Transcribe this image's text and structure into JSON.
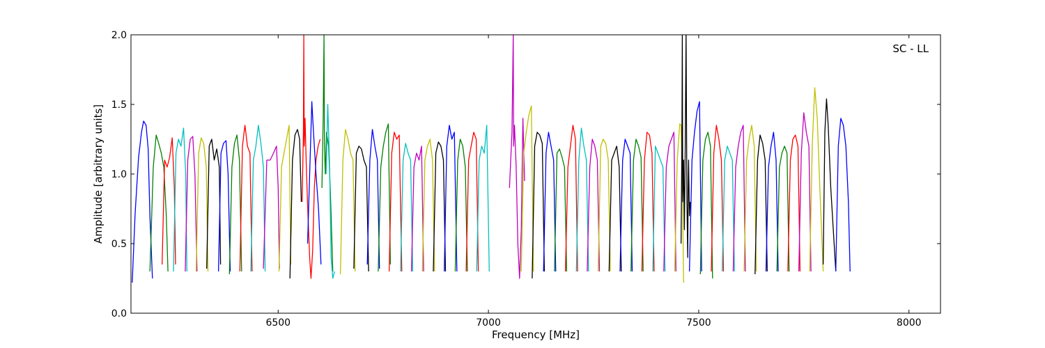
{
  "chart_data": {
    "type": "line",
    "annotation": "SC - LL",
    "xlabel": "Frequency [MHz]",
    "ylabel": "Amplitude [arbitrary units]",
    "xlim": [
      6150,
      8075
    ],
    "ylim": [
      0.0,
      2.0
    ],
    "xticks": [
      6500,
      7000,
      7500,
      8000
    ],
    "yticks": [
      0.0,
      0.5,
      1.0,
      1.5,
      2.0
    ],
    "xtick_labels": [
      "6500",
      "7000",
      "7500",
      "8000"
    ],
    "ytick_labels": [
      "0.0",
      "0.5",
      "1.0",
      "1.5",
      "2.0"
    ],
    "grid": false,
    "legend": "none",
    "color_cycle": [
      "#0000ff",
      "#008000",
      "#ff0000",
      "#00bfbf",
      "#bf00bf",
      "#bfbf00",
      "#000000"
    ],
    "series": [
      {
        "color": "#0000ff",
        "x": [
          6153,
          6160,
          6168,
          6175,
          6180,
          6186,
          6191,
          6195,
          6201
        ],
        "y": [
          0.22,
          0.72,
          1.12,
          1.3,
          1.38,
          1.35,
          1.18,
          0.7,
          0.25
        ]
      },
      {
        "color": "#008000",
        "x": [
          6195,
          6203,
          6210,
          6216,
          6222,
          6228,
          6234,
          6238
        ],
        "y": [
          0.3,
          1.05,
          1.28,
          1.22,
          1.15,
          1.05,
          0.7,
          0.3
        ]
      },
      {
        "color": "#ff0000",
        "x": [
          6224,
          6230,
          6236,
          6242,
          6248,
          6253,
          6256
        ],
        "y": [
          0.35,
          1.1,
          1.05,
          1.12,
          1.26,
          0.9,
          0.35
        ]
      },
      {
        "color": "#00bfbf",
        "x": [
          6251,
          6257,
          6263,
          6269,
          6275,
          6280,
          6283
        ],
        "y": [
          0.3,
          1.15,
          1.25,
          1.2,
          1.33,
          1.0,
          0.3
        ]
      },
      {
        "color": "#bf00bf",
        "x": [
          6279,
          6285,
          6291,
          6297,
          6302,
          6307
        ],
        "y": [
          0.3,
          1.1,
          1.25,
          1.27,
          1.0,
          0.3
        ]
      },
      {
        "color": "#bfbf00",
        "x": [
          6305,
          6311,
          6317,
          6323,
          6329,
          6333
        ],
        "y": [
          0.3,
          1.15,
          1.26,
          1.22,
          1.05,
          0.3
        ]
      },
      {
        "color": "#000000",
        "x": [
          6330,
          6336,
          6342,
          6348,
          6354,
          6360,
          6363
        ],
        "y": [
          0.32,
          1.2,
          1.25,
          1.1,
          1.18,
          1.05,
          0.35
        ]
      },
      {
        "color": "#0000ff",
        "x": [
          6358,
          6364,
          6370,
          6376,
          6381,
          6386
        ],
        "y": [
          0.3,
          1.15,
          1.22,
          1.24,
          1.0,
          0.3
        ]
      },
      {
        "color": "#008000",
        "x": [
          6384,
          6390,
          6396,
          6402,
          6408,
          6413
        ],
        "y": [
          0.28,
          1.05,
          1.22,
          1.28,
          1.1,
          0.3
        ]
      },
      {
        "color": "#ff0000",
        "x": [
          6409,
          6415,
          6421,
          6427,
          6433,
          6438
        ],
        "y": [
          0.3,
          1.2,
          1.35,
          1.2,
          1.15,
          0.3
        ]
      },
      {
        "color": "#00bfbf",
        "x": [
          6435,
          6441,
          6447,
          6453,
          6459,
          6465,
          6469
        ],
        "y": [
          0.3,
          1.1,
          1.2,
          1.35,
          1.22,
          1.05,
          0.3
        ]
      },
      {
        "color": "#bf00bf",
        "x": [
          6465,
          6473,
          6481,
          6489,
          6496,
          6500,
          6503
        ],
        "y": [
          0.32,
          1.1,
          1.1,
          1.15,
          1.2,
          0.9,
          0.32
        ]
      },
      {
        "color": "#bfbf00",
        "x": [
          6502,
          6508,
          6514,
          6520,
          6526,
          6530
        ],
        "y": [
          0.3,
          1.05,
          1.15,
          1.25,
          1.35,
          0.35
        ]
      },
      {
        "color": "#000000",
        "x": [
          6528,
          6534,
          6540,
          6546,
          6551,
          6555
        ],
        "y": [
          0.25,
          1.1,
          1.28,
          1.32,
          1.25,
          0.8
        ]
      },
      {
        "color": "#ff0000",
        "x": [
          6557,
          6560,
          6561,
          6562,
          6564,
          6567,
          6571,
          6575,
          6578,
          6582,
          6586,
          6590,
          6595,
          6600
        ],
        "y": [
          0.8,
          1.3,
          2.0,
          1.2,
          1.4,
          1.05,
          0.7,
          0.4,
          0.25,
          0.45,
          0.9,
          1.1,
          1.2,
          1.25
        ]
      },
      {
        "color": "#0000ff",
        "x": [
          6570,
          6576,
          6580,
          6584,
          6590,
          6596,
          6602
        ],
        "y": [
          0.5,
          1.1,
          1.52,
          1.3,
          1.0,
          0.75,
          0.35
        ]
      },
      {
        "color": "#008000",
        "x": [
          6604,
          6607,
          6609,
          6610,
          6612,
          6615,
          6620,
          6625,
          6630
        ],
        "y": [
          0.9,
          1.4,
          2.0,
          1.2,
          1.0,
          1.3,
          1.2,
          0.8,
          0.3
        ]
      },
      {
        "color": "#00bfbf",
        "x": [
          6614,
          6618,
          6622,
          6626,
          6630,
          6634
        ],
        "y": [
          1.0,
          1.5,
          1.1,
          0.4,
          0.25,
          0.3
        ]
      },
      {
        "color": "#bfbf00",
        "x": [
          6648,
          6654,
          6660,
          6666,
          6672,
          6678,
          6683
        ],
        "y": [
          0.28,
          1.1,
          1.32,
          1.25,
          1.15,
          1.1,
          0.3
        ]
      },
      {
        "color": "#000000",
        "x": [
          6680,
          6686,
          6692,
          6698,
          6704,
          6710,
          6715
        ],
        "y": [
          0.32,
          1.15,
          1.2,
          1.18,
          1.1,
          1.05,
          0.3
        ]
      },
      {
        "color": "#0000ff",
        "x": [
          6712,
          6718,
          6724,
          6730,
          6736,
          6741
        ],
        "y": [
          0.35,
          1.1,
          1.32,
          1.2,
          1.1,
          0.32
        ]
      },
      {
        "color": "#008000",
        "x": [
          6738,
          6744,
          6750,
          6756,
          6762,
          6767
        ],
        "y": [
          0.3,
          1.05,
          1.2,
          1.3,
          1.36,
          0.35
        ]
      },
      {
        "color": "#ff0000",
        "x": [
          6764,
          6770,
          6776,
          6782,
          6788,
          6794
        ],
        "y": [
          0.3,
          1.15,
          1.3,
          1.25,
          1.28,
          0.3
        ]
      },
      {
        "color": "#00bfbf",
        "x": [
          6791,
          6797,
          6803,
          6809,
          6815,
          6820
        ],
        "y": [
          0.3,
          1.1,
          1.22,
          1.15,
          1.1,
          0.3
        ]
      },
      {
        "color": "#bf00bf",
        "x": [
          6817,
          6823,
          6829,
          6835,
          6841,
          6846
        ],
        "y": [
          0.3,
          1.05,
          1.15,
          1.1,
          1.2,
          0.3
        ]
      },
      {
        "color": "#bfbf00",
        "x": [
          6843,
          6849,
          6855,
          6861,
          6867,
          6872
        ],
        "y": [
          0.3,
          1.1,
          1.2,
          1.25,
          1.1,
          0.3
        ]
      },
      {
        "color": "#000000",
        "x": [
          6869,
          6875,
          6881,
          6887,
          6893,
          6898
        ],
        "y": [
          0.3,
          1.15,
          1.23,
          1.2,
          1.1,
          0.3
        ]
      },
      {
        "color": "#0000ff",
        "x": [
          6895,
          6901,
          6907,
          6913,
          6919,
          6925
        ],
        "y": [
          0.3,
          1.2,
          1.35,
          1.25,
          1.3,
          0.3
        ]
      },
      {
        "color": "#008000",
        "x": [
          6921,
          6927,
          6933,
          6939,
          6945,
          6950
        ],
        "y": [
          0.3,
          1.1,
          1.25,
          1.2,
          1.05,
          0.3
        ]
      },
      {
        "color": "#ff0000",
        "x": [
          6947,
          6953,
          6959,
          6965,
          6971,
          6976
        ],
        "y": [
          0.3,
          1.1,
          1.2,
          1.3,
          1.25,
          0.3
        ]
      },
      {
        "color": "#00bfbf",
        "x": [
          6972,
          6978,
          6984,
          6990,
          6996,
          7002
        ],
        "y": [
          0.3,
          1.1,
          1.2,
          1.15,
          1.35,
          0.3
        ]
      },
      {
        "color": "#bf00bf",
        "x": [
          7050,
          7056,
          7059,
          7060,
          7062,
          7066,
          7070,
          7074,
          7078,
          7082,
          7086
        ],
        "y": [
          0.9,
          1.3,
          2.0,
          1.2,
          1.35,
          1.05,
          0.5,
          0.25,
          0.6,
          1.4,
          0.95
        ]
      },
      {
        "color": "#bfbf00",
        "x": [
          7078,
          7084,
          7090,
          7096,
          7102,
          7107
        ],
        "y": [
          0.3,
          1.15,
          1.3,
          1.42,
          1.49,
          0.3
        ]
      },
      {
        "color": "#000000",
        "x": [
          7104,
          7110,
          7116,
          7122,
          7128,
          7133
        ],
        "y": [
          0.25,
          1.2,
          1.3,
          1.28,
          1.22,
          0.3
        ]
      },
      {
        "color": "#0000ff",
        "x": [
          7131,
          7137,
          7143,
          7149,
          7155,
          7160
        ],
        "y": [
          0.3,
          1.15,
          1.3,
          1.2,
          1.1,
          0.3
        ]
      },
      {
        "color": "#008000",
        "x": [
          7157,
          7163,
          7169,
          7175,
          7181,
          7186
        ],
        "y": [
          0.3,
          1.15,
          1.18,
          1.12,
          1.05,
          0.3
        ]
      },
      {
        "color": "#ff0000",
        "x": [
          7183,
          7189,
          7195,
          7201,
          7207,
          7212
        ],
        "y": [
          0.3,
          1.05,
          1.2,
          1.35,
          1.25,
          0.3
        ]
      },
      {
        "color": "#00bfbf",
        "x": [
          7209,
          7215,
          7221,
          7227,
          7233,
          7238
        ],
        "y": [
          0.3,
          1.1,
          1.33,
          1.2,
          1.1,
          0.3
        ]
      },
      {
        "color": "#bf00bf",
        "x": [
          7235,
          7241,
          7247,
          7253,
          7259,
          7264
        ],
        "y": [
          0.3,
          1.05,
          1.25,
          1.2,
          1.1,
          0.3
        ]
      },
      {
        "color": "#bfbf00",
        "x": [
          7261,
          7267,
          7273,
          7279,
          7285,
          7290
        ],
        "y": [
          0.3,
          1.2,
          1.25,
          1.22,
          1.1,
          0.3
        ]
      },
      {
        "color": "#000000",
        "x": [
          7287,
          7293,
          7299,
          7305,
          7311,
          7316
        ],
        "y": [
          0.3,
          1.1,
          1.15,
          1.2,
          1.05,
          0.3
        ]
      },
      {
        "color": "#0000ff",
        "x": [
          7313,
          7319,
          7325,
          7331,
          7337,
          7342
        ],
        "y": [
          0.3,
          1.1,
          1.25,
          1.2,
          1.15,
          0.3
        ]
      },
      {
        "color": "#008000",
        "x": [
          7339,
          7345,
          7351,
          7357,
          7363,
          7368
        ],
        "y": [
          0.3,
          1.1,
          1.25,
          1.2,
          1.12,
          0.3
        ]
      },
      {
        "color": "#ff0000",
        "x": [
          7365,
          7371,
          7377,
          7383,
          7389,
          7394
        ],
        "y": [
          0.3,
          1.1,
          1.3,
          1.28,
          1.15,
          0.3
        ]
      },
      {
        "color": "#00bfbf",
        "x": [
          7391,
          7397,
          7403,
          7409,
          7415,
          7420
        ],
        "y": [
          0.3,
          1.2,
          1.15,
          1.1,
          1.05,
          0.3
        ]
      },
      {
        "color": "#bf00bf",
        "x": [
          7417,
          7423,
          7429,
          7435,
          7441,
          7446
        ],
        "y": [
          0.3,
          1.05,
          1.2,
          1.25,
          1.3,
          0.3
        ]
      },
      {
        "color": "#bfbf00",
        "x": [
          7443,
          7449,
          7455,
          7458,
          7461,
          7464
        ],
        "y": [
          0.3,
          1.1,
          1.36,
          1.35,
          1.0,
          0.22
        ]
      },
      {
        "color": "#000000",
        "x": [
          7458,
          7460,
          7461,
          7462,
          7464,
          7466,
          7468,
          7470,
          7472,
          7474,
          7475,
          7476,
          7478,
          7480
        ],
        "y": [
          0.5,
          1.2,
          2.0,
          0.8,
          1.1,
          0.6,
          1.2,
          2.0,
          0.8,
          0.4,
          0.9,
          1.1,
          0.7,
          0.8
        ]
      },
      {
        "color": "#0000ff",
        "x": [
          7478,
          7484,
          7490,
          7496,
          7502,
          7507
        ],
        "y": [
          0.3,
          1.1,
          1.3,
          1.45,
          1.52,
          0.3
        ]
      },
      {
        "color": "#008000",
        "x": [
          7504,
          7510,
          7516,
          7522,
          7528,
          7533
        ],
        "y": [
          0.28,
          1.1,
          1.25,
          1.3,
          1.2,
          0.25
        ]
      },
      {
        "color": "#ff0000",
        "x": [
          7530,
          7536,
          7542,
          7548,
          7554,
          7559
        ],
        "y": [
          0.3,
          1.15,
          1.35,
          1.25,
          1.1,
          0.3
        ]
      },
      {
        "color": "#00bfbf",
        "x": [
          7556,
          7562,
          7568,
          7574,
          7580,
          7585
        ],
        "y": [
          0.3,
          1.1,
          1.2,
          1.15,
          1.1,
          0.3
        ]
      },
      {
        "color": "#bf00bf",
        "x": [
          7582,
          7588,
          7594,
          7600,
          7606,
          7611
        ],
        "y": [
          0.3,
          1.05,
          1.2,
          1.3,
          1.35,
          0.3
        ]
      },
      {
        "color": "#bfbf00",
        "x": [
          7608,
          7614,
          7620,
          7626,
          7632,
          7637
        ],
        "y": [
          0.3,
          1.1,
          1.25,
          1.35,
          1.2,
          0.3
        ]
      },
      {
        "color": "#000000",
        "x": [
          7634,
          7640,
          7646,
          7652,
          7658,
          7663
        ],
        "y": [
          0.28,
          1.1,
          1.28,
          1.22,
          1.1,
          0.3
        ]
      },
      {
        "color": "#0000ff",
        "x": [
          7660,
          7666,
          7672,
          7678,
          7684,
          7689
        ],
        "y": [
          0.3,
          1.05,
          1.2,
          1.3,
          1.1,
          0.3
        ]
      },
      {
        "color": "#008000",
        "x": [
          7686,
          7692,
          7698,
          7704,
          7710,
          7715
        ],
        "y": [
          0.3,
          1.05,
          1.15,
          1.2,
          1.15,
          0.3
        ]
      },
      {
        "color": "#ff0000",
        "x": [
          7712,
          7718,
          7724,
          7730,
          7736,
          7741
        ],
        "y": [
          0.3,
          1.1,
          1.25,
          1.28,
          1.2,
          0.3
        ]
      },
      {
        "color": "#bf00bf",
        "x": [
          7738,
          7744,
          7750,
          7756,
          7762,
          7767
        ],
        "y": [
          0.3,
          1.15,
          1.44,
          1.3,
          1.2,
          0.3
        ]
      },
      {
        "color": "#bfbf00",
        "x": [
          7764,
          7770,
          7776,
          7782,
          7788,
          7796
        ],
        "y": [
          0.3,
          1.2,
          1.62,
          1.4,
          0.9,
          0.3
        ]
      },
      {
        "color": "#000000",
        "x": [
          7796,
          7800,
          7804,
          7808,
          7814,
          7820,
          7826
        ],
        "y": [
          0.35,
          1.3,
          1.54,
          1.35,
          0.9,
          0.6,
          0.3
        ]
      },
      {
        "color": "#0000ff",
        "x": [
          7826,
          7832,
          7838,
          7844,
          7850,
          7856,
          7860
        ],
        "y": [
          0.3,
          1.2,
          1.4,
          1.35,
          1.2,
          0.8,
          0.3
        ]
      }
    ]
  }
}
